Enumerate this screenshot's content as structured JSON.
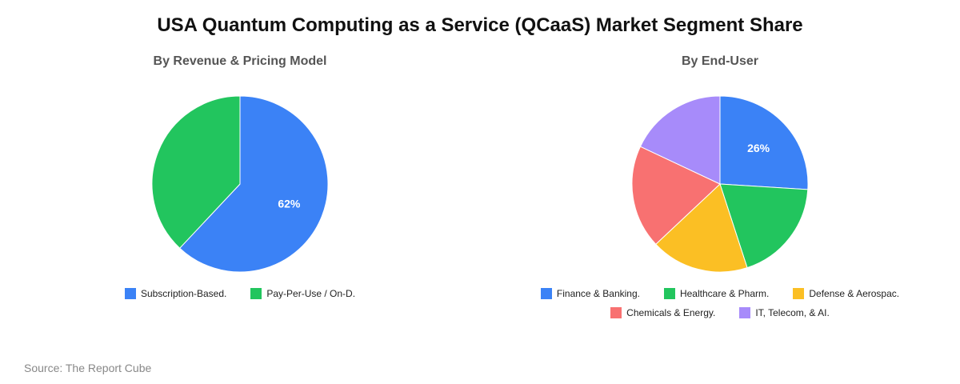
{
  "title": "USA Quantum Computing as a Service (QCaaS) Market Segment Share",
  "source": "Source: The Report Cube",
  "chart_data": [
    {
      "type": "pie",
      "title": "By Revenue & Pricing Model",
      "legend_position": "bottom",
      "slices": [
        {
          "label": "Subscription-Based.",
          "value": 62,
          "color": "#3b82f6",
          "show_label": true
        },
        {
          "label": "Pay-Per-Use / On-D.",
          "value": 38,
          "color": "#22c55e",
          "show_label": false
        }
      ]
    },
    {
      "type": "pie",
      "title": "By End-User",
      "legend_position": "bottom",
      "slices": [
        {
          "label": "Finance & Banking.",
          "value": 26,
          "color": "#3b82f6",
          "show_label": true
        },
        {
          "label": "Healthcare & Pharm.",
          "value": 19,
          "color": "#22c55e",
          "show_label": false
        },
        {
          "label": "Defense & Aerospac.",
          "value": 18,
          "color": "#fbbf24",
          "show_label": false
        },
        {
          "label": "Chemicals & Energy.",
          "value": 19,
          "color": "#f87171",
          "show_label": false
        },
        {
          "label": "IT, Telecom, & AI.",
          "value": 18,
          "color": "#a78bfa",
          "show_label": false
        }
      ]
    }
  ]
}
